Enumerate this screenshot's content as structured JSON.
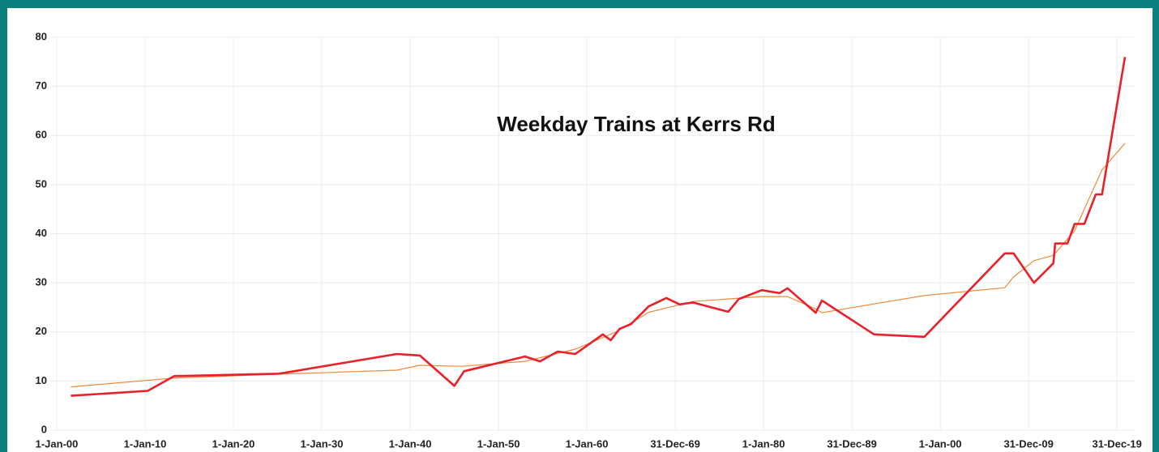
{
  "chart_data": {
    "type": "line",
    "title": "Weekday Trains at Kerrs Rd",
    "xlim": [
      1900,
      2022
    ],
    "xticks": [
      {
        "value": 1900,
        "label": "1-Jan-00"
      },
      {
        "value": 1910,
        "label": "1-Jan-10"
      },
      {
        "value": 1920,
        "label": "1-Jan-20"
      },
      {
        "value": 1930,
        "label": "1-Jan-30"
      },
      {
        "value": 1940,
        "label": "1-Jan-40"
      },
      {
        "value": 1950,
        "label": "1-Jan-50"
      },
      {
        "value": 1960,
        "label": "1-Jan-60"
      },
      {
        "value": 1970,
        "label": "31-Dec-69"
      },
      {
        "value": 1980,
        "label": "1-Jan-80"
      },
      {
        "value": 1990,
        "label": "31-Dec-89"
      },
      {
        "value": 2000,
        "label": "1-Jan-00"
      },
      {
        "value": 2010,
        "label": "31-Dec-09"
      },
      {
        "value": 2020,
        "label": "31-Dec-19"
      }
    ],
    "ylim": [
      0,
      80
    ],
    "yticks": [
      0,
      10,
      20,
      30,
      40,
      50,
      60,
      70,
      80
    ],
    "grid": true,
    "series": [
      {
        "color": "#f08a3c",
        "width": 1.2,
        "x": [
          1901.6,
          1913.3,
          1925.2,
          1938.5,
          1941.1,
          1945.8,
          1953.0,
          1958.7,
          1963.3,
          1967.0,
          1972.0,
          1979.8,
          1982.7,
          1985.9,
          1986.6,
          1992.5,
          1998.2,
          2007.3,
          2008.3,
          2010.6,
          2012.8,
          2015.2,
          2018.3,
          2020.9
        ],
        "values": [
          8.8,
          10.6,
          11.4,
          12.2,
          13.2,
          13,
          14,
          16.5,
          20,
          24,
          26.2,
          27.2,
          27.2,
          24.7,
          23.9,
          25.7,
          27.4,
          29,
          31.2,
          34.5,
          35.6,
          40.6,
          53,
          58.4
        ]
      },
      {
        "color": "#e8202a",
        "width": 2.6,
        "x": [
          1901.6,
          1910.3,
          1913.3,
          1925.2,
          1938.5,
          1941.1,
          1945.0,
          1946.1,
          1953.0,
          1954.7,
          1956.7,
          1958.7,
          1961.8,
          1962.7,
          1963.7,
          1965.0,
          1967.0,
          1969.0,
          1970.5,
          1972.0,
          1976.0,
          1977.2,
          1979.8,
          1981.8,
          1982.7,
          1985.9,
          1986.6,
          1992.5,
          1998.2,
          2007.3,
          2008.3,
          2010.6,
          2012.8,
          2013.0,
          2014.4,
          2015.2,
          2016.3,
          2017.6,
          2018.3,
          2020.9
        ],
        "values": [
          7,
          8,
          11,
          11.5,
          15.5,
          15.2,
          9,
          12,
          15,
          14,
          16,
          15.5,
          19.5,
          18.3,
          20.6,
          21.6,
          25.2,
          26.9,
          25.6,
          26,
          24.1,
          26.7,
          28.5,
          27.9,
          28.9,
          23.9,
          26.4,
          19.5,
          19,
          36,
          36,
          30,
          34,
          38,
          38,
          42,
          42,
          48,
          48,
          76
        ]
      }
    ]
  }
}
